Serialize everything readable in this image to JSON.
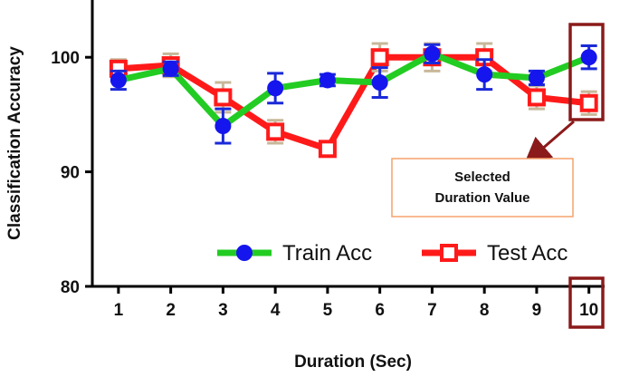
{
  "chart_data": {
    "type": "line",
    "xlabel": "Duration (Sec)",
    "ylabel": "Classification Accuracy",
    "x": [
      1,
      2,
      3,
      4,
      5,
      6,
      7,
      8,
      9,
      10
    ],
    "ylim": [
      80,
      105
    ],
    "yticks": [
      80,
      90,
      100
    ],
    "grid": false,
    "legend_position": "bottom-right",
    "series": [
      {
        "name": "Test Acc",
        "values": [
          99.0,
          99.3,
          96.5,
          93.5,
          92.0,
          100.0,
          100.0,
          100.0,
          96.5,
          96.0
        ],
        "errors": [
          0.8,
          1.0,
          1.3,
          1.0,
          0.6,
          1.2,
          1.2,
          1.2,
          1.0,
          1.0
        ],
        "line_color": "#ff1a1a",
        "marker": "square",
        "marker_color": "#ff1a1a",
        "errorbar_color": "#c8b89a"
      },
      {
        "name": "Train Acc",
        "values": [
          98.0,
          99.0,
          94.0,
          97.3,
          98.0,
          97.8,
          100.3,
          98.5,
          98.2,
          100.0
        ],
        "errors": [
          0.8,
          0.6,
          1.5,
          1.3,
          0.5,
          1.3,
          0.8,
          1.3,
          0.6,
          1.0
        ],
        "line_color": "#22cc22",
        "marker": "circle",
        "marker_color": "#1515ee",
        "errorbar_color": "#1a2ad8"
      }
    ],
    "annotation": {
      "line1": "Selected",
      "line2": "Duration Value",
      "target_x": 10,
      "highlight_color": "#8b1a1a",
      "box_border_color": "#f5a26b"
    }
  }
}
